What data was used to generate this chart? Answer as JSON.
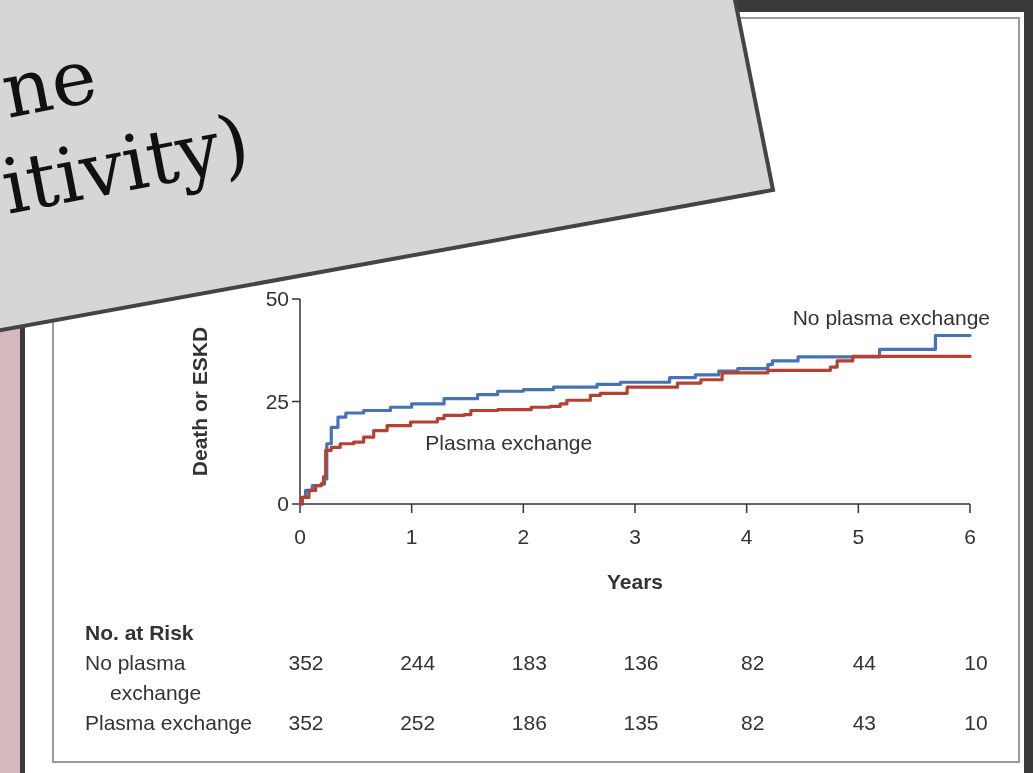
{
  "chart_data": [
    {
      "type": "other",
      "annotations": [
        "ne",
        "itivity)"
      ]
    },
    {
      "type": "step",
      "xlabel": "Years",
      "ylabel": "Death or ESKD",
      "xlim": [
        0,
        6
      ],
      "xticks": [
        0,
        1,
        2,
        3,
        4,
        5,
        6
      ],
      "ylim": [
        0,
        50
      ],
      "yticks": [
        0,
        25,
        50
      ],
      "series": [
        {
          "name": "No plasma exchange",
          "color": "#4673b4",
          "x": [
            0,
            0.02,
            0.05,
            0.11,
            0.19,
            0.22,
            0.24,
            0.28,
            0.34,
            0.41,
            0.57,
            0.81,
            1.0,
            1.29,
            1.59,
            1.77,
            2.0,
            2.27,
            2.66,
            2.87,
            3.31,
            3.54,
            3.75,
            3.92,
            4.19,
            4.23,
            4.46,
            5.19,
            5.69,
            6.0
          ],
          "values": [
            0,
            1.6,
            3.3,
            4.5,
            4.9,
            6.1,
            14.7,
            18.7,
            21.2,
            22.2,
            22.8,
            23.6,
            24.4,
            25.7,
            26.7,
            27.5,
            27.9,
            28.5,
            29.2,
            29.7,
            30.8,
            31.5,
            32.4,
            33.0,
            34.0,
            34.9,
            35.9,
            37.7,
            41.1,
            41.1
          ]
        },
        {
          "name": "Plasma exchange",
          "color": "#b44132",
          "x": [
            0,
            0.02,
            0.08,
            0.14,
            0.19,
            0.21,
            0.23,
            0.28,
            0.36,
            0.48,
            0.57,
            0.66,
            0.78,
            0.99,
            1.23,
            1.29,
            1.47,
            1.53,
            1.77,
            2.07,
            2.24,
            2.33,
            2.39,
            2.6,
            2.69,
            2.93,
            3.38,
            3.59,
            3.78,
            4.19,
            4.75,
            4.81,
            4.95,
            6.0
          ],
          "values": [
            0,
            1.6,
            3.3,
            4.5,
            4.9,
            6.6,
            13.1,
            13.8,
            14.7,
            15.1,
            16.3,
            17.9,
            19.1,
            20.0,
            20.8,
            21.6,
            21.8,
            22.8,
            23.0,
            23.6,
            23.8,
            24.4,
            25.3,
            26.5,
            27.0,
            28.5,
            29.5,
            30.3,
            32.0,
            32.6,
            33.4,
            34.9,
            36.0,
            36.0
          ]
        }
      ]
    },
    {
      "type": "other",
      "title": "No. at Risk",
      "categories": [
        null,
        null,
        null,
        null,
        null,
        null,
        null
      ],
      "y_categories": [
        "No plasma exchange",
        "Plasma exchange"
      ],
      "annotations": [
        "352",
        "244",
        "183",
        "136",
        "82",
        "44",
        "10",
        "352",
        "252",
        "186",
        "135",
        "82",
        "43",
        "10"
      ]
    }
  ]
}
